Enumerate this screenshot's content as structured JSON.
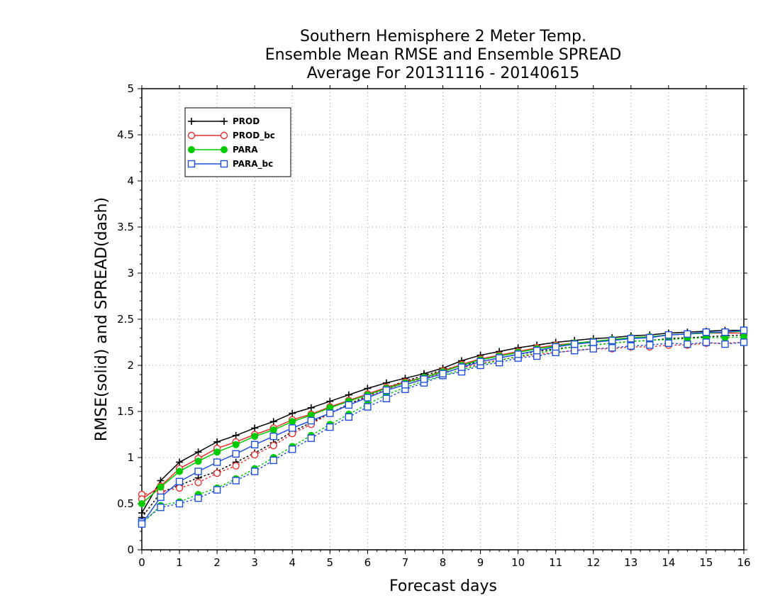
{
  "chart_data": {
    "type": "line",
    "title": [
      "Southern Hemisphere 2 Meter Temp.",
      "Ensemble Mean RMSE and Ensemble SPREAD",
      "Average For 20131116 - 20140615"
    ],
    "xlabel": "Forecast days",
    "ylabel": "RMSE(solid) and SPREAD(dash)",
    "xlim": [
      0,
      16
    ],
    "ylim": [
      0,
      5
    ],
    "xticks": [
      0,
      1,
      2,
      3,
      4,
      5,
      6,
      7,
      8,
      9,
      10,
      11,
      12,
      13,
      14,
      15,
      16
    ],
    "yticks": [
      0,
      0.5,
      1,
      1.5,
      2,
      2.5,
      3,
      3.5,
      4,
      4.5,
      5
    ],
    "ytick_labels": [
      "0",
      "0.5",
      "1",
      "1.5",
      "2",
      "2.5",
      "3",
      "3.5",
      "4",
      "4.5",
      "5"
    ],
    "grid": true,
    "legend_position": "top-left",
    "x": [
      0,
      0.5,
      1,
      1.5,
      2,
      2.5,
      3,
      3.5,
      4,
      4.5,
      5,
      5.5,
      6,
      6.5,
      7,
      7.5,
      8,
      8.5,
      9,
      9.5,
      10,
      10.5,
      11,
      11.5,
      12,
      12.5,
      13,
      13.5,
      14,
      14.5,
      15,
      15.5,
      16
    ],
    "series": [
      {
        "name": "PROD",
        "color": "#000000",
        "marker": "plus",
        "rmse": [
          0.4,
          0.75,
          0.95,
          1.06,
          1.17,
          1.24,
          1.32,
          1.39,
          1.48,
          1.54,
          1.61,
          1.68,
          1.75,
          1.81,
          1.86,
          1.91,
          1.97,
          2.05,
          2.11,
          2.15,
          2.19,
          2.22,
          2.25,
          2.27,
          2.29,
          2.3,
          2.32,
          2.33,
          2.35,
          2.36,
          2.37,
          2.38,
          2.38
        ],
        "spread": [
          0.35,
          0.62,
          0.7,
          0.78,
          0.85,
          0.95,
          1.05,
          1.16,
          1.28,
          1.38,
          1.48,
          1.58,
          1.67,
          1.76,
          1.83,
          1.89,
          1.95,
          2.0,
          2.04,
          2.08,
          2.12,
          2.15,
          2.18,
          2.2,
          2.22,
          2.24,
          2.26,
          2.27,
          2.29,
          2.3,
          2.31,
          2.32,
          2.33
        ]
      },
      {
        "name": "PROD_bc",
        "color": "#e83030",
        "marker": "circle",
        "rmse": [
          0.55,
          0.69,
          0.88,
          0.99,
          1.1,
          1.17,
          1.25,
          1.32,
          1.41,
          1.47,
          1.55,
          1.62,
          1.69,
          1.76,
          1.82,
          1.87,
          1.94,
          2.01,
          2.07,
          2.11,
          2.15,
          2.19,
          2.22,
          2.24,
          2.26,
          2.28,
          2.3,
          2.31,
          2.33,
          2.34,
          2.35,
          2.35,
          2.35
        ],
        "spread": [
          0.6,
          0.63,
          0.67,
          0.73,
          0.83,
          0.91,
          1.03,
          1.13,
          1.26,
          1.36,
          1.48,
          1.57,
          1.66,
          1.74,
          1.81,
          1.86,
          1.92,
          1.97,
          2.02,
          2.06,
          2.09,
          2.12,
          2.14,
          2.16,
          2.18,
          2.18,
          2.2,
          2.2,
          2.22,
          2.22,
          2.24,
          2.24,
          2.25
        ]
      },
      {
        "name": "PARA",
        "color": "#00cc00",
        "marker": "filled-circle",
        "rmse": [
          0.5,
          0.68,
          0.85,
          0.96,
          1.06,
          1.14,
          1.23,
          1.3,
          1.39,
          1.46,
          1.54,
          1.61,
          1.68,
          1.75,
          1.81,
          1.87,
          1.93,
          2.0,
          2.06,
          2.1,
          2.14,
          2.18,
          2.21,
          2.24,
          2.26,
          2.28,
          2.3,
          2.31,
          2.33,
          2.34,
          2.35,
          2.36,
          2.37
        ],
        "spread": [
          0.28,
          0.48,
          0.52,
          0.6,
          0.67,
          0.77,
          0.88,
          1.0,
          1.12,
          1.24,
          1.36,
          1.47,
          1.58,
          1.68,
          1.76,
          1.83,
          1.89,
          1.95,
          2.01,
          2.05,
          2.1,
          2.13,
          2.17,
          2.2,
          2.22,
          2.24,
          2.26,
          2.27,
          2.28,
          2.29,
          2.3,
          2.3,
          2.31
        ]
      },
      {
        "name": "PARA_bc",
        "color": "#2050e0",
        "marker": "square",
        "rmse": [
          0.28,
          0.57,
          0.74,
          0.85,
          0.95,
          1.04,
          1.14,
          1.23,
          1.32,
          1.4,
          1.48,
          1.57,
          1.65,
          1.73,
          1.79,
          1.85,
          1.91,
          1.98,
          2.04,
          2.08,
          2.12,
          2.16,
          2.2,
          2.23,
          2.25,
          2.27,
          2.29,
          2.3,
          2.33,
          2.34,
          2.36,
          2.36,
          2.38
        ],
        "spread": [
          0.3,
          0.46,
          0.5,
          0.56,
          0.65,
          0.75,
          0.85,
          0.97,
          1.09,
          1.21,
          1.33,
          1.44,
          1.55,
          1.64,
          1.74,
          1.81,
          1.89,
          1.93,
          2.0,
          2.03,
          2.08,
          2.1,
          2.14,
          2.16,
          2.18,
          2.19,
          2.21,
          2.22,
          2.24,
          2.23,
          2.25,
          2.23,
          2.25
        ]
      }
    ]
  }
}
